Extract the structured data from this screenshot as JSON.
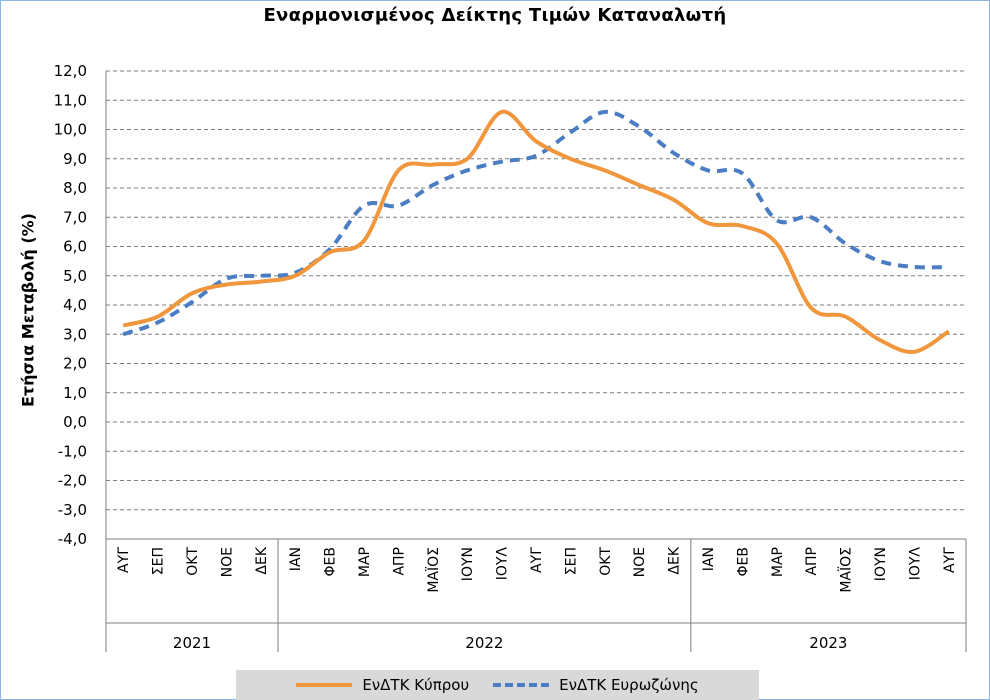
{
  "chart_data": {
    "type": "line",
    "title": "Εναρμονισμένος Δείκτης Τιμών Καταναλωτή",
    "ylabel": "Ετήσια Μεταβολή (%)",
    "xlabel": "",
    "ylim": [
      -4.0,
      12.0
    ],
    "yticks": [
      "12,0",
      "11,0",
      "10,0",
      "9,0",
      "8,0",
      "7,0",
      "6,0",
      "5,0",
      "4,0",
      "3,0",
      "2,0",
      "1,0",
      "0,0",
      "-1,0",
      "-2,0",
      "-3,0",
      "-4,0"
    ],
    "grid": true,
    "categories": [
      "ΑΥΓ",
      "ΣΕΠ",
      "ΟΚΤ",
      "ΝΟΕ",
      "ΔΕΚ",
      "ΙΑΝ",
      "ΦΕΒ",
      "ΜΑΡ",
      "ΑΠΡ",
      "ΜΑΪΟΣ",
      "ΙΟΥΝ",
      "ΙΟΥΛ",
      "ΑΥΓ",
      "ΣΕΠ",
      "ΟΚΤ",
      "ΝΟΕ",
      "ΔΕΚ",
      "ΙΑΝ",
      "ΦΕΒ",
      "ΜΑΡ",
      "ΑΠΡ",
      "ΜΑΪΟΣ",
      "ΙΟΥΝ",
      "ΙΟΥΛ",
      "ΑΥΓ"
    ],
    "groups": [
      {
        "label": "2021",
        "count": 5
      },
      {
        "label": "2022",
        "count": 12
      },
      {
        "label": "2023",
        "count": 8
      }
    ],
    "series": [
      {
        "name": "ΕνΔΤΚ Κύπρου",
        "color": "#f0963c",
        "style": "solid",
        "values": [
          3.3,
          3.6,
          4.4,
          4.7,
          4.8,
          5.0,
          5.8,
          6.2,
          8.6,
          8.8,
          9.0,
          10.6,
          9.6,
          9.0,
          8.6,
          8.1,
          7.6,
          6.8,
          6.7,
          6.1,
          3.9,
          3.6,
          2.8,
          2.4,
          3.1
        ]
      },
      {
        "name": "ΕνΔΤΚ Ευρωζώνης",
        "color": "#4a7dc4",
        "style": "dashed",
        "values": [
          3.0,
          3.4,
          4.1,
          4.9,
          5.0,
          5.1,
          5.9,
          7.4,
          7.4,
          8.1,
          8.6,
          8.9,
          9.1,
          9.9,
          10.6,
          10.1,
          9.2,
          8.6,
          8.5,
          6.9,
          7.0,
          6.1,
          5.5,
          5.3,
          5.3
        ]
      }
    ]
  }
}
